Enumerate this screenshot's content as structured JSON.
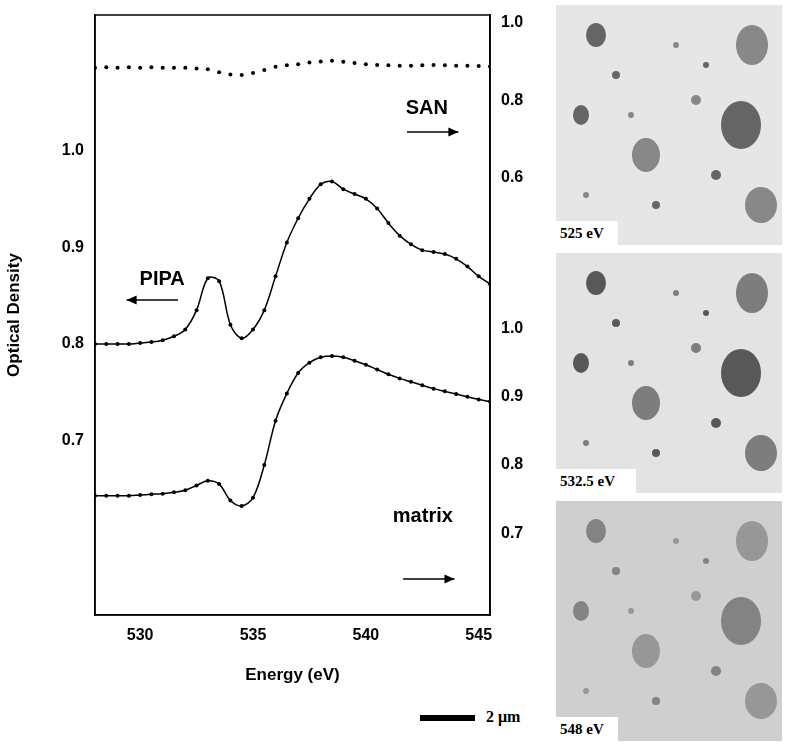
{
  "chart_data": {
    "type": "line",
    "x_label": "Energy (eV)",
    "y_label": "Optical Density",
    "x": [
      528,
      528.5,
      529,
      529.5,
      530,
      530.5,
      531,
      531.5,
      532,
      532.5,
      533,
      533.5,
      534,
      534.5,
      535,
      535.5,
      536,
      536.5,
      537,
      537.5,
      538,
      538.5,
      539,
      539.5,
      540,
      540.5,
      541,
      541.5,
      542,
      542.5,
      543,
      543.5,
      544,
      544.5,
      545,
      545.5
    ],
    "xlim": [
      528,
      545.5
    ],
    "xticks": [
      530,
      535,
      540,
      545
    ],
    "ylim": [
      0.52,
      1.14
    ],
    "yticks": [
      0.7,
      0.8,
      0.9,
      {
        "value": 1.0,
        "label": "1.0"
      }
    ],
    "y2lim": [
      -0.53,
      1.02
    ],
    "y2ticks": [
      0.6,
      0.8,
      {
        "value": 1.0,
        "label": "1.0"
      }
    ],
    "y3lim": [
      0.58,
      1.46
    ],
    "y3ticks": [
      0.7,
      0.8,
      0.9,
      {
        "value": 1.0,
        "label": "1.0"
      }
    ],
    "grid": false,
    "series": [
      {
        "name": "SAN",
        "color": "#000000",
        "axis": "y2",
        "marker": "circle",
        "line_style": "none",
        "values": [
          0.884,
          0.885,
          0.884,
          0.885,
          0.884,
          0.885,
          0.884,
          0.884,
          0.884,
          0.882,
          0.88,
          0.872,
          0.866,
          0.865,
          0.87,
          0.878,
          0.886,
          0.89,
          0.893,
          0.897,
          0.9,
          0.902,
          0.899,
          0.896,
          0.893,
          0.891,
          0.89,
          0.889,
          0.889,
          0.89,
          0.891,
          0.89,
          0.889,
          0.889,
          0.888,
          0.887
        ]
      },
      {
        "name": "PIPA",
        "color": "#000000",
        "axis": "y",
        "marker": "circle",
        "line_style": "solid",
        "values": [
          0.8,
          0.8,
          0.8,
          0.8,
          0.801,
          0.802,
          0.804,
          0.808,
          0.815,
          0.835,
          0.868,
          0.865,
          0.82,
          0.806,
          0.815,
          0.835,
          0.87,
          0.905,
          0.93,
          0.95,
          0.965,
          0.968,
          0.96,
          0.955,
          0.95,
          0.94,
          0.925,
          0.912,
          0.903,
          0.897,
          0.895,
          0.893,
          0.888,
          0.88,
          0.87,
          0.862
        ]
      },
      {
        "name": "matrix",
        "color": "#000000",
        "axis": "y3",
        "marker": "circle",
        "line_style": "solid",
        "values": [
          0.755,
          0.755,
          0.755,
          0.755,
          0.756,
          0.757,
          0.758,
          0.76,
          0.763,
          0.77,
          0.777,
          0.772,
          0.748,
          0.74,
          0.752,
          0.8,
          0.865,
          0.905,
          0.935,
          0.95,
          0.958,
          0.96,
          0.958,
          0.953,
          0.947,
          0.94,
          0.933,
          0.927,
          0.922,
          0.917,
          0.912,
          0.908,
          0.904,
          0.9,
          0.896,
          0.893
        ]
      }
    ]
  },
  "images": [
    {
      "label": "525 eV"
    },
    {
      "label": "532.5 eV"
    },
    {
      "label": "548 eV"
    }
  ],
  "scale_bar": "2 μm"
}
